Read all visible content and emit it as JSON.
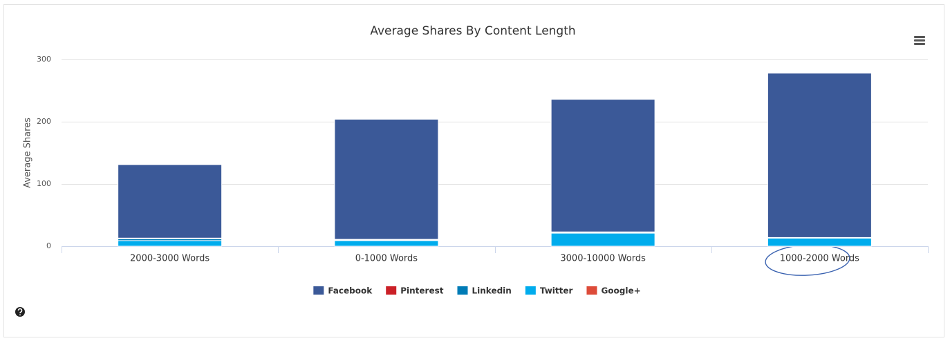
{
  "chart_data": {
    "type": "stacked-bar",
    "title": "Average Shares By Content Length",
    "y_label": "Average Shares",
    "categories": [
      "2000-3000 Words",
      "0-1000 Words",
      "3000-10000 Words",
      "1000-2000 Words"
    ],
    "series": [
      {
        "name": "Facebook",
        "color": "#3b5998",
        "values": [
          118,
          193,
          213,
          264
        ]
      },
      {
        "name": "Pinterest",
        "color": "#cb2027",
        "values": [
          1,
          1,
          1,
          0
        ]
      },
      {
        "name": "Linkedin",
        "color": "#007bb6",
        "values": [
          3,
          1,
          1,
          1
        ]
      },
      {
        "name": "Twitter",
        "color": "#00aced",
        "values": [
          9,
          9,
          21,
          13
        ]
      },
      {
        "name": "Google+",
        "color": "#dd4b39",
        "values": [
          0,
          0,
          0,
          0
        ]
      }
    ],
    "ylim": [
      0,
      300
    ],
    "yticks": [
      0,
      100,
      200,
      300
    ],
    "grid": true
  }
}
